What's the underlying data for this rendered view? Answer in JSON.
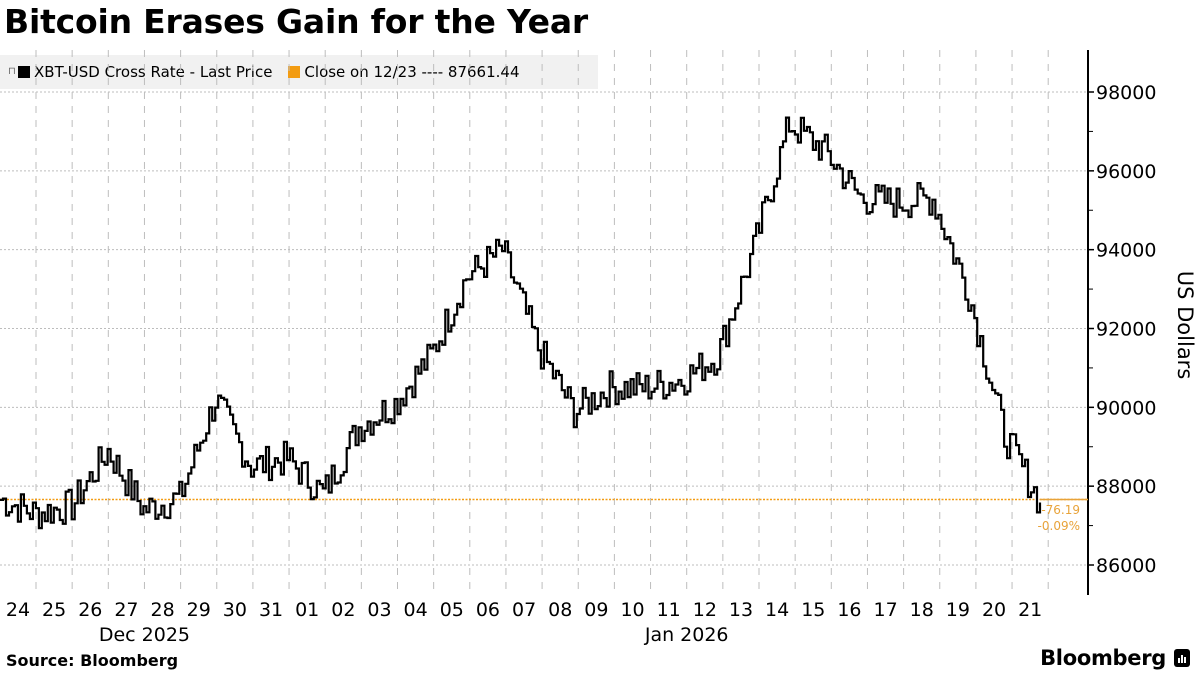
{
  "title": "Bitcoin Erases Gain for the Year",
  "legend": {
    "items": [
      {
        "label": "XBT-USD Cross Rate - Last Price",
        "color": "#000000"
      },
      {
        "label": "Close on 12/23 ---- 87661.44",
        "color": "#f39c12"
      }
    ]
  },
  "annotation": {
    "change": "-76.19",
    "change_pct": "-0.09%",
    "color": "#e8a33a"
  },
  "source": "Source: Bloomberg",
  "brand": "Bloomberg",
  "chart_data": {
    "type": "line",
    "title": "Bitcoin Erases Gain for the Year",
    "xlabel": "",
    "ylabel": "US Dollars",
    "ylim": [
      85300,
      99200
    ],
    "yticks": [
      86000,
      88000,
      90000,
      92000,
      94000,
      96000,
      98000
    ],
    "x_tick_labels": [
      "24",
      "25",
      "26",
      "27",
      "28",
      "29",
      "30",
      "31",
      "01",
      "02",
      "03",
      "04",
      "05",
      "06",
      "07",
      "08",
      "09",
      "10",
      "11",
      "12",
      "13",
      "14",
      "15",
      "16",
      "17",
      "18",
      "19",
      "20",
      "21"
    ],
    "x_group_labels": [
      {
        "label": "Dec 2025",
        "under": "27"
      },
      {
        "label": "Jan 2026",
        "under": "11"
      }
    ],
    "grid": true,
    "legend_position": "top-left",
    "reference_line": {
      "label": "Close on 12/23",
      "value": 87661.44,
      "color": "#f39c12"
    },
    "last_change": {
      "abs": -76.19,
      "pct": -0.09
    },
    "series": [
      {
        "name": "XBT-USD Cross Rate - Last Price",
        "color": "#000000",
        "x": [
          "12/23",
          "12/24",
          "12/25",
          "12/26",
          "12/27",
          "12/28",
          "12/29",
          "12/30",
          "12/31",
          "01/01",
          "01/02",
          "01/03",
          "01/04",
          "01/05",
          "01/06",
          "01/07",
          "01/08",
          "01/09",
          "01/10",
          "01/11",
          "01/12",
          "01/13",
          "01/14",
          "01/15",
          "01/16",
          "01/17",
          "01/18",
          "01/19",
          "01/20",
          "01/21"
        ],
        "values": [
          87661,
          87300,
          87500,
          88900,
          87400,
          87700,
          90200,
          88500,
          88700,
          87800,
          89500,
          90100,
          91300,
          93300,
          94000,
          91500,
          89900,
          90500,
          90500,
          90700,
          91300,
          94000,
          97200,
          96500,
          95300,
          95200,
          95300,
          92900,
          89300,
          87585
        ]
      }
    ]
  }
}
